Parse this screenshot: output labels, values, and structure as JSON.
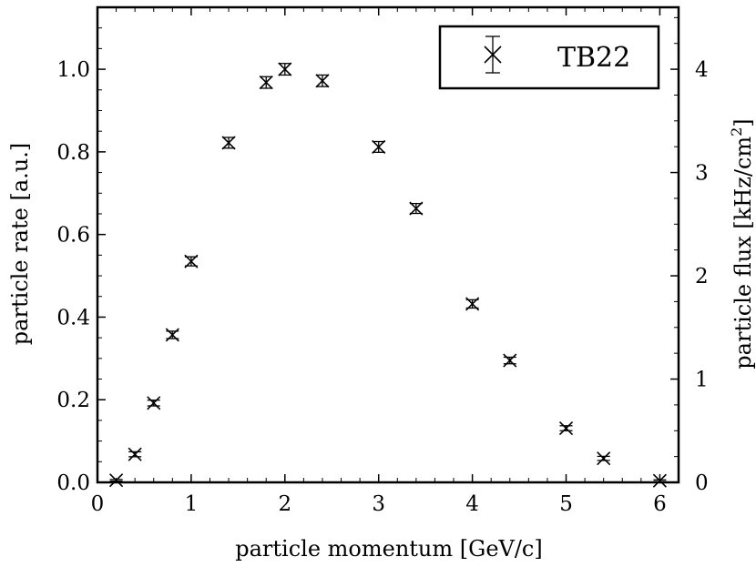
{
  "chart_data": {
    "type": "scatter",
    "xlabel": "particle momentum [GeV/c]",
    "ylabel": "particle rate [a.u.]",
    "y2label_main": "particle flux [kHz/cm",
    "y2label_sup": "2",
    "y2label_end": "]",
    "xlim": [
      0,
      6.2
    ],
    "ylim": [
      0,
      1.15
    ],
    "y2lim": [
      0,
      4.6
    ],
    "x_ticks": [
      0,
      1,
      2,
      3,
      4,
      5,
      6
    ],
    "x_tick_labels": [
      "0",
      "1",
      "2",
      "3",
      "4",
      "5",
      "6"
    ],
    "y_ticks": [
      0,
      0.2,
      0.4,
      0.6,
      0.8,
      1.0
    ],
    "y_tick_labels": [
      "0.0",
      "0.2",
      "0.4",
      "0.6",
      "0.8",
      "1.0"
    ],
    "y2_ticks": [
      0,
      1,
      2,
      3,
      4
    ],
    "y2_tick_labels": [
      "0",
      "1",
      "2",
      "3",
      "4"
    ],
    "legend_position": "top-right",
    "grid": false,
    "series": [
      {
        "name": "TB22",
        "marker": "x",
        "color": "#000000",
        "x": [
          0.2,
          0.4,
          0.6,
          0.8,
          1.0,
          1.4,
          1.8,
          2.0,
          2.4,
          3.0,
          3.4,
          4.0,
          4.4,
          5.0,
          5.4,
          6.0
        ],
        "y": [
          0.005,
          0.068,
          0.192,
          0.357,
          0.535,
          0.822,
          0.968,
          1.0,
          0.972,
          0.812,
          0.663,
          0.432,
          0.295,
          0.131,
          0.058,
          0.004
        ],
        "yerr": [
          0.002,
          0.006,
          0.007,
          0.009,
          0.011,
          0.013,
          0.014,
          0.014,
          0.014,
          0.013,
          0.012,
          0.01,
          0.008,
          0.006,
          0.005,
          0.002
        ]
      }
    ]
  }
}
